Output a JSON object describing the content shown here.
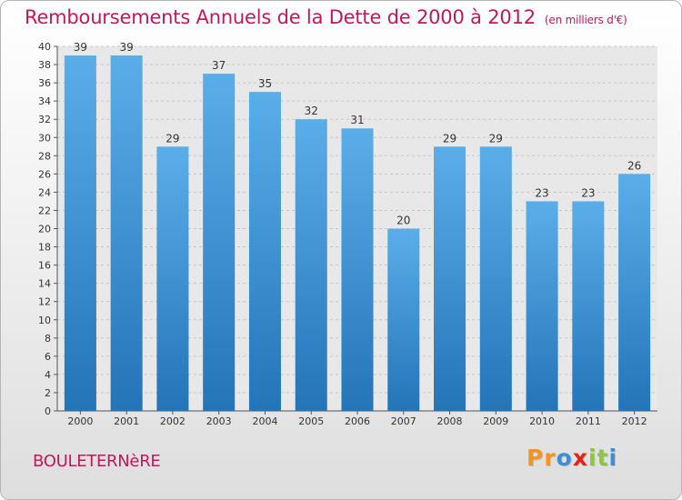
{
  "chart_data": {
    "type": "bar",
    "title": "Remboursements Annuels de la Dette de 2000 à 2012",
    "subtitle": "(en milliers d'€)",
    "categories": [
      "2000",
      "2001",
      "2002",
      "2003",
      "2004",
      "2005",
      "2006",
      "2007",
      "2008",
      "2009",
      "2010",
      "2011",
      "2012"
    ],
    "values": [
      39,
      39,
      29,
      37,
      35,
      32,
      31,
      20,
      29,
      29,
      23,
      23,
      26
    ],
    "ylim": [
      0,
      40
    ],
    "yticks": [
      0,
      2,
      4,
      6,
      8,
      10,
      12,
      14,
      16,
      18,
      20,
      22,
      24,
      26,
      28,
      30,
      32,
      34,
      36,
      38,
      40
    ],
    "grid": true,
    "bar_color_top": "#5aaee8",
    "bar_color_bottom": "#2474b8"
  },
  "footer": {
    "commune": "BOULETERNèRE",
    "logo_letters": [
      "P",
      "r",
      "o",
      "x",
      "i",
      "t",
      "i"
    ],
    "logo_colors": [
      "#f7941d",
      "#f7941d",
      "#3a8fd6",
      "#e2231a",
      "#8dc63f",
      "#8dc63f",
      "#3a8fd6"
    ]
  },
  "colors": {
    "title": "#c2185b",
    "axis_text": "#333333"
  }
}
